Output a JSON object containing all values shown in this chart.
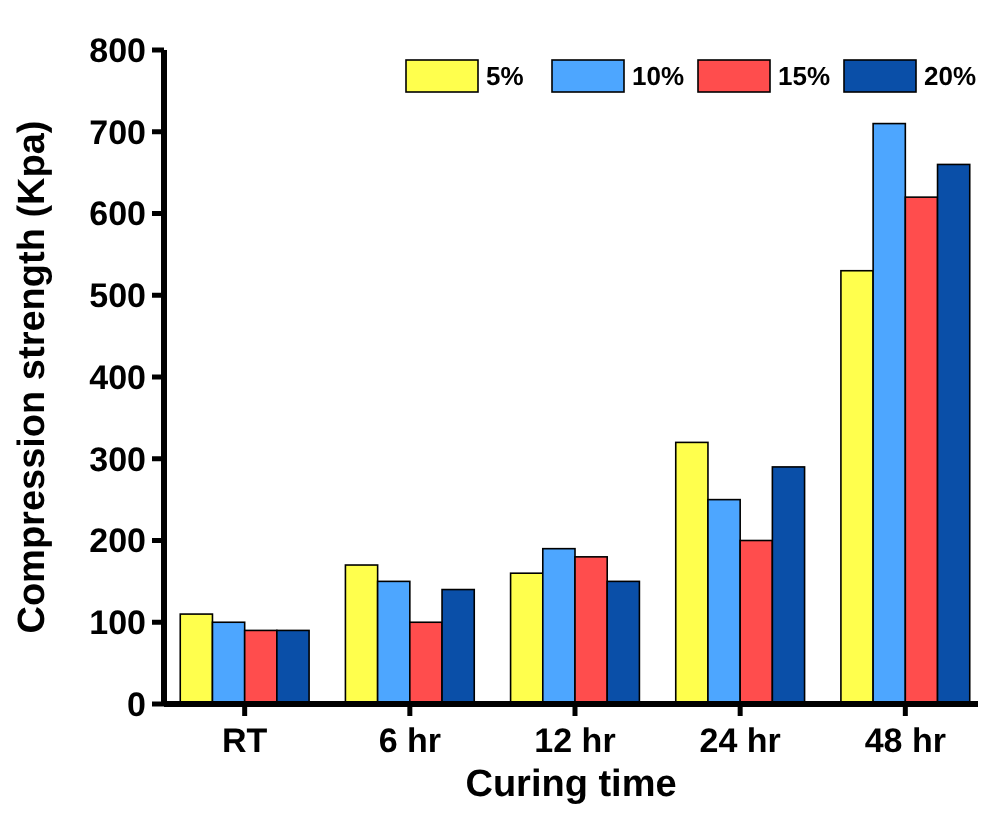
{
  "chart_data": {
    "type": "bar",
    "xlabel": "Curing time",
    "ylabel": "Compression strength (Kpa)",
    "categories": [
      "RT",
      "6 hr",
      "12 hr",
      "24 hr",
      "48 hr"
    ],
    "series": [
      {
        "name": "5%",
        "color": "#ffff4d",
        "values": [
          110,
          170,
          160,
          320,
          530
        ]
      },
      {
        "name": "10%",
        "color": "#4da6ff",
        "values": [
          100,
          150,
          190,
          250,
          710
        ]
      },
      {
        "name": "15%",
        "color": "#ff4d4d",
        "values": [
          90,
          100,
          180,
          200,
          620
        ]
      },
      {
        "name": "20%",
        "color": "#0a4fa8",
        "values": [
          90,
          140,
          150,
          290,
          660
        ]
      }
    ],
    "ylim": [
      0,
      800
    ],
    "yticks": [
      0,
      100,
      200,
      300,
      400,
      500,
      600,
      700,
      800
    ],
    "grid": false,
    "legend": "top right"
  }
}
